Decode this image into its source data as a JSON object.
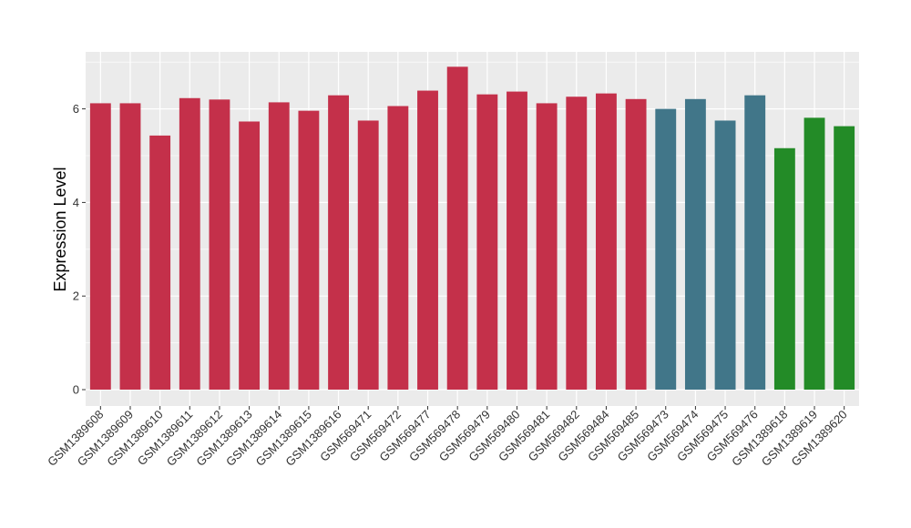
{
  "chart_data": {
    "type": "bar",
    "title": "",
    "xlabel": "",
    "ylabel": "Expression Level",
    "ylim": [
      0,
      7.2
    ],
    "yticks": [
      0,
      2,
      4,
      6
    ],
    "grid": true,
    "legend": "none",
    "panel_background": "#ebebeb",
    "grid_color": "#ffffff",
    "categories": [
      "GSM1389608",
      "GSM1389609",
      "GSM1389610",
      "GSM1389611",
      "GSM1389612",
      "GSM1389613",
      "GSM1389614",
      "GSM1389615",
      "GSM1389616",
      "GSM569471",
      "GSM569472",
      "GSM569477",
      "GSM569478",
      "GSM569479",
      "GSM569480",
      "GSM569481",
      "GSM569482",
      "GSM569484",
      "GSM569485",
      "GSM569473",
      "GSM569474",
      "GSM569475",
      "GSM569476",
      "GSM1389618",
      "GSM1389619",
      "GSM1389620"
    ],
    "values": [
      6.12,
      6.12,
      5.43,
      6.23,
      6.2,
      5.73,
      6.14,
      5.96,
      6.29,
      5.75,
      6.06,
      6.39,
      6.9,
      6.31,
      6.37,
      6.12,
      6.26,
      6.33,
      6.21,
      6.0,
      6.21,
      5.75,
      6.29,
      5.16,
      5.81,
      5.63
    ],
    "colors": [
      "#c4304a",
      "#c4304a",
      "#c4304a",
      "#c4304a",
      "#c4304a",
      "#c4304a",
      "#c4304a",
      "#c4304a",
      "#c4304a",
      "#c4304a",
      "#c4304a",
      "#c4304a",
      "#c4304a",
      "#c4304a",
      "#c4304a",
      "#c4304a",
      "#c4304a",
      "#c4304a",
      "#c4304a",
      "#417689",
      "#417689",
      "#417689",
      "#417689",
      "#238b27",
      "#238b27",
      "#238b27"
    ]
  }
}
